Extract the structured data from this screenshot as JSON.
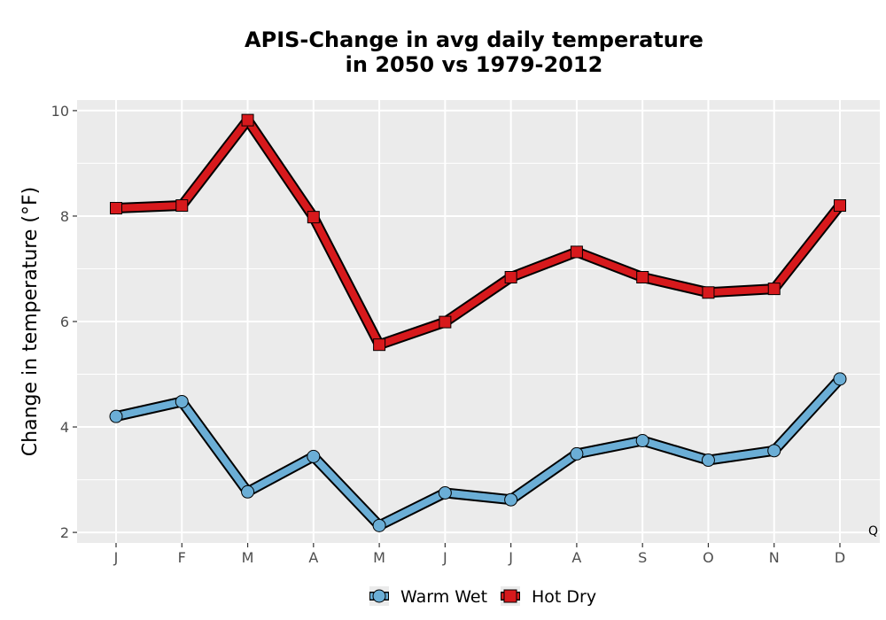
{
  "chart_data": {
    "type": "line",
    "title_line1": "APIS-Change in avg daily temperature",
    "title_line2": "in 2050 vs 1979-2012",
    "xlabel": "",
    "ylabel": "Change in temperature (°F)",
    "categories": [
      "J",
      "F",
      "M",
      "A",
      "M",
      "J",
      "J",
      "A",
      "S",
      "O",
      "N",
      "D"
    ],
    "ylim": [
      1.8,
      10.2
    ],
    "yticks": [
      2,
      4,
      6,
      8,
      10
    ],
    "grid": true,
    "legend_position": "bottom",
    "annotation": "Q",
    "series": [
      {
        "name": "Warm Wet",
        "color": "#6baed6",
        "marker": "circle",
        "values": [
          4.2,
          4.48,
          2.77,
          3.44,
          2.13,
          2.75,
          2.62,
          3.49,
          3.74,
          3.37,
          3.55,
          4.91
        ]
      },
      {
        "name": "Hot Dry",
        "color": "#d7191c",
        "marker": "square",
        "values": [
          8.15,
          8.2,
          9.82,
          7.98,
          5.56,
          5.99,
          6.84,
          7.32,
          6.84,
          6.55,
          6.62,
          8.2
        ]
      }
    ]
  }
}
